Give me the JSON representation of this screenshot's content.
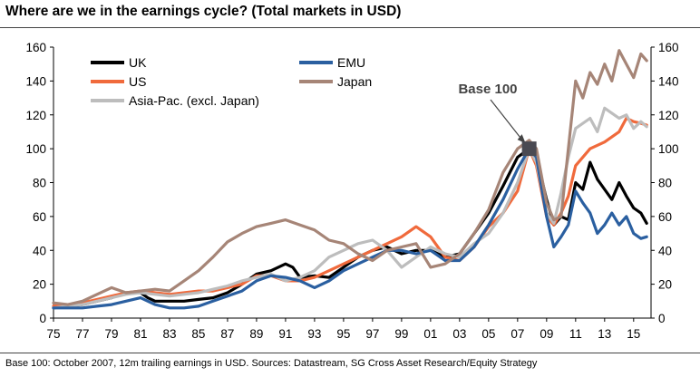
{
  "title": "Where are we in the earnings cycle? (Total markets in USD)",
  "source": "Base 100: October 2007, 12m trailing earnings in USD. Sources: Datastream, SG Cross Asset Research/Equity Strategy",
  "chart_data": {
    "type": "line",
    "title": "Where are we in the earnings cycle? (Total markets in USD)",
    "xlabel": "",
    "ylabel": "",
    "xlim": [
      1975,
      2016.2
    ],
    "ylim": [
      0,
      160
    ],
    "yticks": [
      0,
      20,
      40,
      60,
      80,
      100,
      120,
      140,
      160
    ],
    "xtick_values": [
      1975,
      1977,
      1979,
      1981,
      1983,
      1985,
      1987,
      1989,
      1991,
      1993,
      1995,
      1997,
      1999,
      2001,
      2003,
      2005,
      2007,
      2009,
      2011,
      2013,
      2015
    ],
    "xtick_labels": [
      "75",
      "77",
      "79",
      "81",
      "83",
      "85",
      "87",
      "89",
      "91",
      "93",
      "95",
      "97",
      "99",
      "01",
      "03",
      "05",
      "07",
      "09",
      "11",
      "13",
      "15"
    ],
    "grid": false,
    "legend_position": "top-left",
    "annotation": {
      "text": "Base 100",
      "x": 2007.8,
      "y": 100
    },
    "series": [
      {
        "name": "UK",
        "color": "#000000",
        "x": [
          1975,
          1976,
          1977,
          1978,
          1979,
          1980,
          1981,
          1981.5,
          1982,
          1983,
          1984,
          1985,
          1986,
          1987,
          1988,
          1989,
          1990,
          1991,
          1991.5,
          1992,
          1993,
          1994,
          1995,
          1996,
          1997,
          1998,
          1999,
          2000,
          2001,
          2002,
          2003,
          2004,
          2005,
          2006,
          2007,
          2007.8,
          2008.3,
          2009,
          2009.5,
          2010,
          2010.5,
          2011,
          2011.5,
          2012,
          2012.5,
          2013,
          2013.5,
          2014,
          2014.5,
          2015,
          2015.5,
          2015.9
        ],
        "values": [
          6,
          7,
          8,
          10,
          12,
          15,
          15,
          12,
          10,
          10,
          10,
          11,
          12,
          15,
          20,
          26,
          28,
          32,
          30,
          24,
          25,
          24,
          30,
          36,
          40,
          42,
          38,
          40,
          40,
          36,
          38,
          50,
          62,
          78,
          95,
          100,
          95,
          70,
          55,
          60,
          58,
          80,
          76,
          92,
          82,
          76,
          70,
          80,
          72,
          65,
          62,
          56
        ]
      },
      {
        "name": "US",
        "color": "#f06a3c",
        "x": [
          1975,
          1976,
          1977,
          1978,
          1979,
          1980,
          1981,
          1982,
          1983,
          1984,
          1985,
          1986,
          1987,
          1988,
          1989,
          1990,
          1991,
          1992,
          1993,
          1994,
          1995,
          1996,
          1997,
          1998,
          1999,
          2000,
          2001,
          2002,
          2003,
          2004,
          2005,
          2006,
          2007,
          2007.8,
          2008.3,
          2009,
          2009.5,
          2010,
          2010.5,
          2011,
          2012,
          2013,
          2014,
          2014.5,
          2015,
          2015.5,
          2015.9
        ],
        "values": [
          7,
          8,
          9,
          11,
          13,
          15,
          16,
          15,
          14,
          15,
          16,
          16,
          18,
          20,
          25,
          25,
          22,
          22,
          24,
          28,
          32,
          36,
          40,
          44,
          48,
          54,
          48,
          36,
          34,
          42,
          54,
          62,
          75,
          100,
          90,
          60,
          55,
          62,
          72,
          90,
          100,
          104,
          110,
          118,
          116,
          115,
          114
        ]
      },
      {
        "name": "Asia-Pac. (excl. Japan)",
        "color": "#bdbdbd",
        "x": [
          1975,
          1976,
          1977,
          1978,
          1979,
          1980,
          1981,
          1982,
          1983,
          1984,
          1985,
          1986,
          1987,
          1988,
          1989,
          1990,
          1991,
          1992,
          1993,
          1994,
          1995,
          1996,
          1997,
          1998,
          1999,
          2000,
          2001,
          2002,
          2003,
          2004,
          2005,
          2006,
          2007,
          2007.8,
          2008.3,
          2009,
          2009.5,
          2010,
          2010.5,
          2011,
          2012,
          2012.5,
          2013,
          2014,
          2014.5,
          2015,
          2015.5,
          2015.9
        ],
        "values": [
          6,
          7,
          8,
          10,
          12,
          14,
          15,
          14,
          13,
          14,
          15,
          17,
          19,
          22,
          24,
          26,
          22,
          24,
          28,
          36,
          40,
          44,
          46,
          40,
          30,
          36,
          42,
          38,
          36,
          44,
          50,
          62,
          80,
          100,
          92,
          62,
          56,
          74,
          95,
          112,
          118,
          110,
          124,
          118,
          120,
          112,
          116,
          113
        ]
      },
      {
        "name": "EMU",
        "color": "#2a5fa0",
        "x": [
          1975,
          1976,
          1977,
          1978,
          1979,
          1980,
          1981,
          1982,
          1983,
          1984,
          1985,
          1986,
          1987,
          1988,
          1989,
          1990,
          1991,
          1992,
          1993,
          1994,
          1995,
          1996,
          1997,
          1998,
          1999,
          2000,
          2001,
          2002,
          2003,
          2004,
          2005,
          2006,
          2007,
          2007.8,
          2008.3,
          2009,
          2009.5,
          2010,
          2010.5,
          2011,
          2011.5,
          2012,
          2012.5,
          2013,
          2013.5,
          2014,
          2014.5,
          2015,
          2015.5,
          2015.9
        ],
        "values": [
          6,
          6,
          6,
          7,
          8,
          10,
          12,
          8,
          6,
          6,
          7,
          10,
          13,
          16,
          22,
          25,
          24,
          22,
          18,
          22,
          28,
          32,
          36,
          40,
          40,
          38,
          40,
          34,
          34,
          42,
          55,
          70,
          88,
          100,
          95,
          60,
          42,
          48,
          55,
          75,
          68,
          62,
          50,
          55,
          62,
          55,
          60,
          50,
          47,
          48
        ]
      },
      {
        "name": "Japan",
        "color": "#a68577",
        "x": [
          1975,
          1976,
          1977,
          1978,
          1979,
          1980,
          1981,
          1982,
          1983,
          1984,
          1985,
          1986,
          1987,
          1988,
          1989,
          1990,
          1991,
          1992,
          1993,
          1994,
          1995,
          1996,
          1997,
          1998,
          1999,
          2000,
          2001,
          2002,
          2003,
          2004,
          2005,
          2006,
          2007,
          2007.8,
          2008.3,
          2009,
          2009.5,
          2010,
          2010.5,
          2011,
          2011.5,
          2012,
          2012.5,
          2013,
          2013.5,
          2014,
          2014.5,
          2015,
          2015.5,
          2015.9
        ],
        "values": [
          9,
          8,
          10,
          14,
          18,
          15,
          16,
          17,
          16,
          22,
          28,
          36,
          45,
          50,
          54,
          56,
          58,
          55,
          52,
          46,
          44,
          38,
          34,
          40,
          42,
          44,
          30,
          32,
          38,
          50,
          64,
          86,
          100,
          105,
          100,
          68,
          58,
          60,
          100,
          140,
          130,
          145,
          138,
          150,
          140,
          158,
          150,
          142,
          156,
          152
        ]
      }
    ]
  }
}
